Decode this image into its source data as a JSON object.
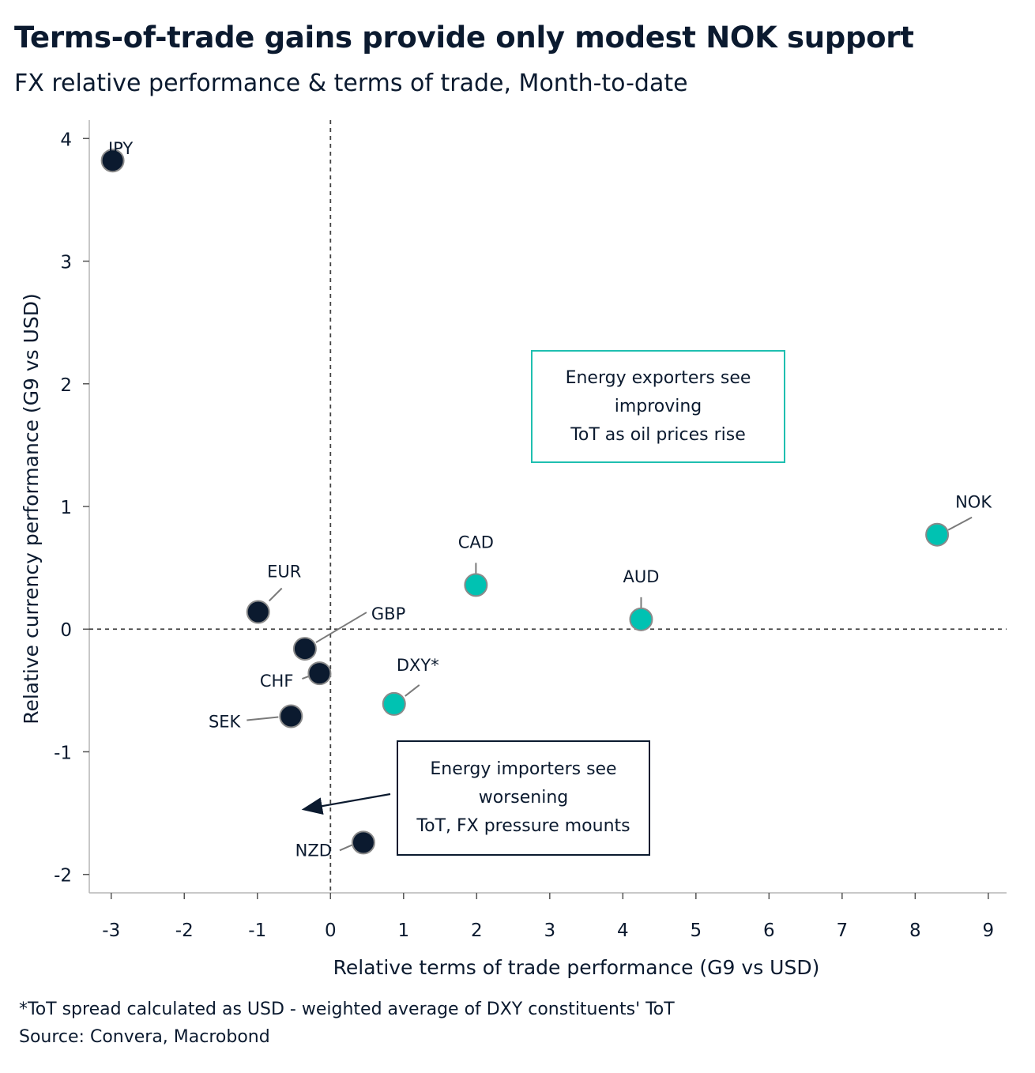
{
  "title": "Terms-of-trade gains provide only modest NOK support",
  "subtitle": "FX relative performance & terms of trade, Month-to-date",
  "footnote": "*ToT spread calculated as USD - weighted average of DXY constituents' ToT",
  "source": "Source: Convera, Macrobond",
  "colors": {
    "energy_exporter": "#00c2b2",
    "energy_importer": "#0b1a2f",
    "marker_outline": "#8a8a8a",
    "exporter_box_border": "#1fbfb0"
  },
  "annotations": {
    "exporters": [
      "Energy exporters see",
      "improving",
      "ToT as oil prices rise"
    ],
    "importers": [
      "Energy importers see",
      "worsening",
      "ToT, FX pressure mounts"
    ]
  },
  "chart_data": {
    "type": "scatter",
    "xlabel": "Relative terms of trade performance (G9 vs USD)",
    "ylabel": "Relative currency performance (G9 vs USD)",
    "xlim": [
      -3.3,
      9.25
    ],
    "ylim": [
      -2.15,
      4.15
    ],
    "xticks": [
      "-3",
      "-2",
      "-1",
      "0",
      "1",
      "2",
      "3",
      "4",
      "5",
      "6",
      "7",
      "8",
      "9"
    ],
    "yticks": [
      "-2",
      "-1",
      "0",
      "1",
      "2",
      "3",
      "4"
    ],
    "grid": false,
    "reference_lines": {
      "x": 0,
      "y": 0,
      "style": "dashed"
    },
    "points": [
      {
        "label": "JPY",
        "x": -2.98,
        "y": 3.82,
        "group": "importer"
      },
      {
        "label": "EUR",
        "x": -0.99,
        "y": 0.14,
        "group": "importer"
      },
      {
        "label": "GBP",
        "x": -0.35,
        "y": -0.16,
        "group": "importer"
      },
      {
        "label": "CHF",
        "x": -0.15,
        "y": -0.36,
        "group": "importer"
      },
      {
        "label": "SEK",
        "x": -0.54,
        "y": -0.71,
        "group": "importer"
      },
      {
        "label": "NZD",
        "x": 0.45,
        "y": -1.74,
        "group": "importer"
      },
      {
        "label": "DXY*",
        "x": 0.87,
        "y": -0.61,
        "group": "exporter"
      },
      {
        "label": "CAD",
        "x": 1.99,
        "y": 0.36,
        "group": "exporter"
      },
      {
        "label": "AUD",
        "x": 4.25,
        "y": 0.08,
        "group": "exporter"
      },
      {
        "label": "NOK",
        "x": 8.3,
        "y": 0.77,
        "group": "exporter"
      }
    ]
  }
}
